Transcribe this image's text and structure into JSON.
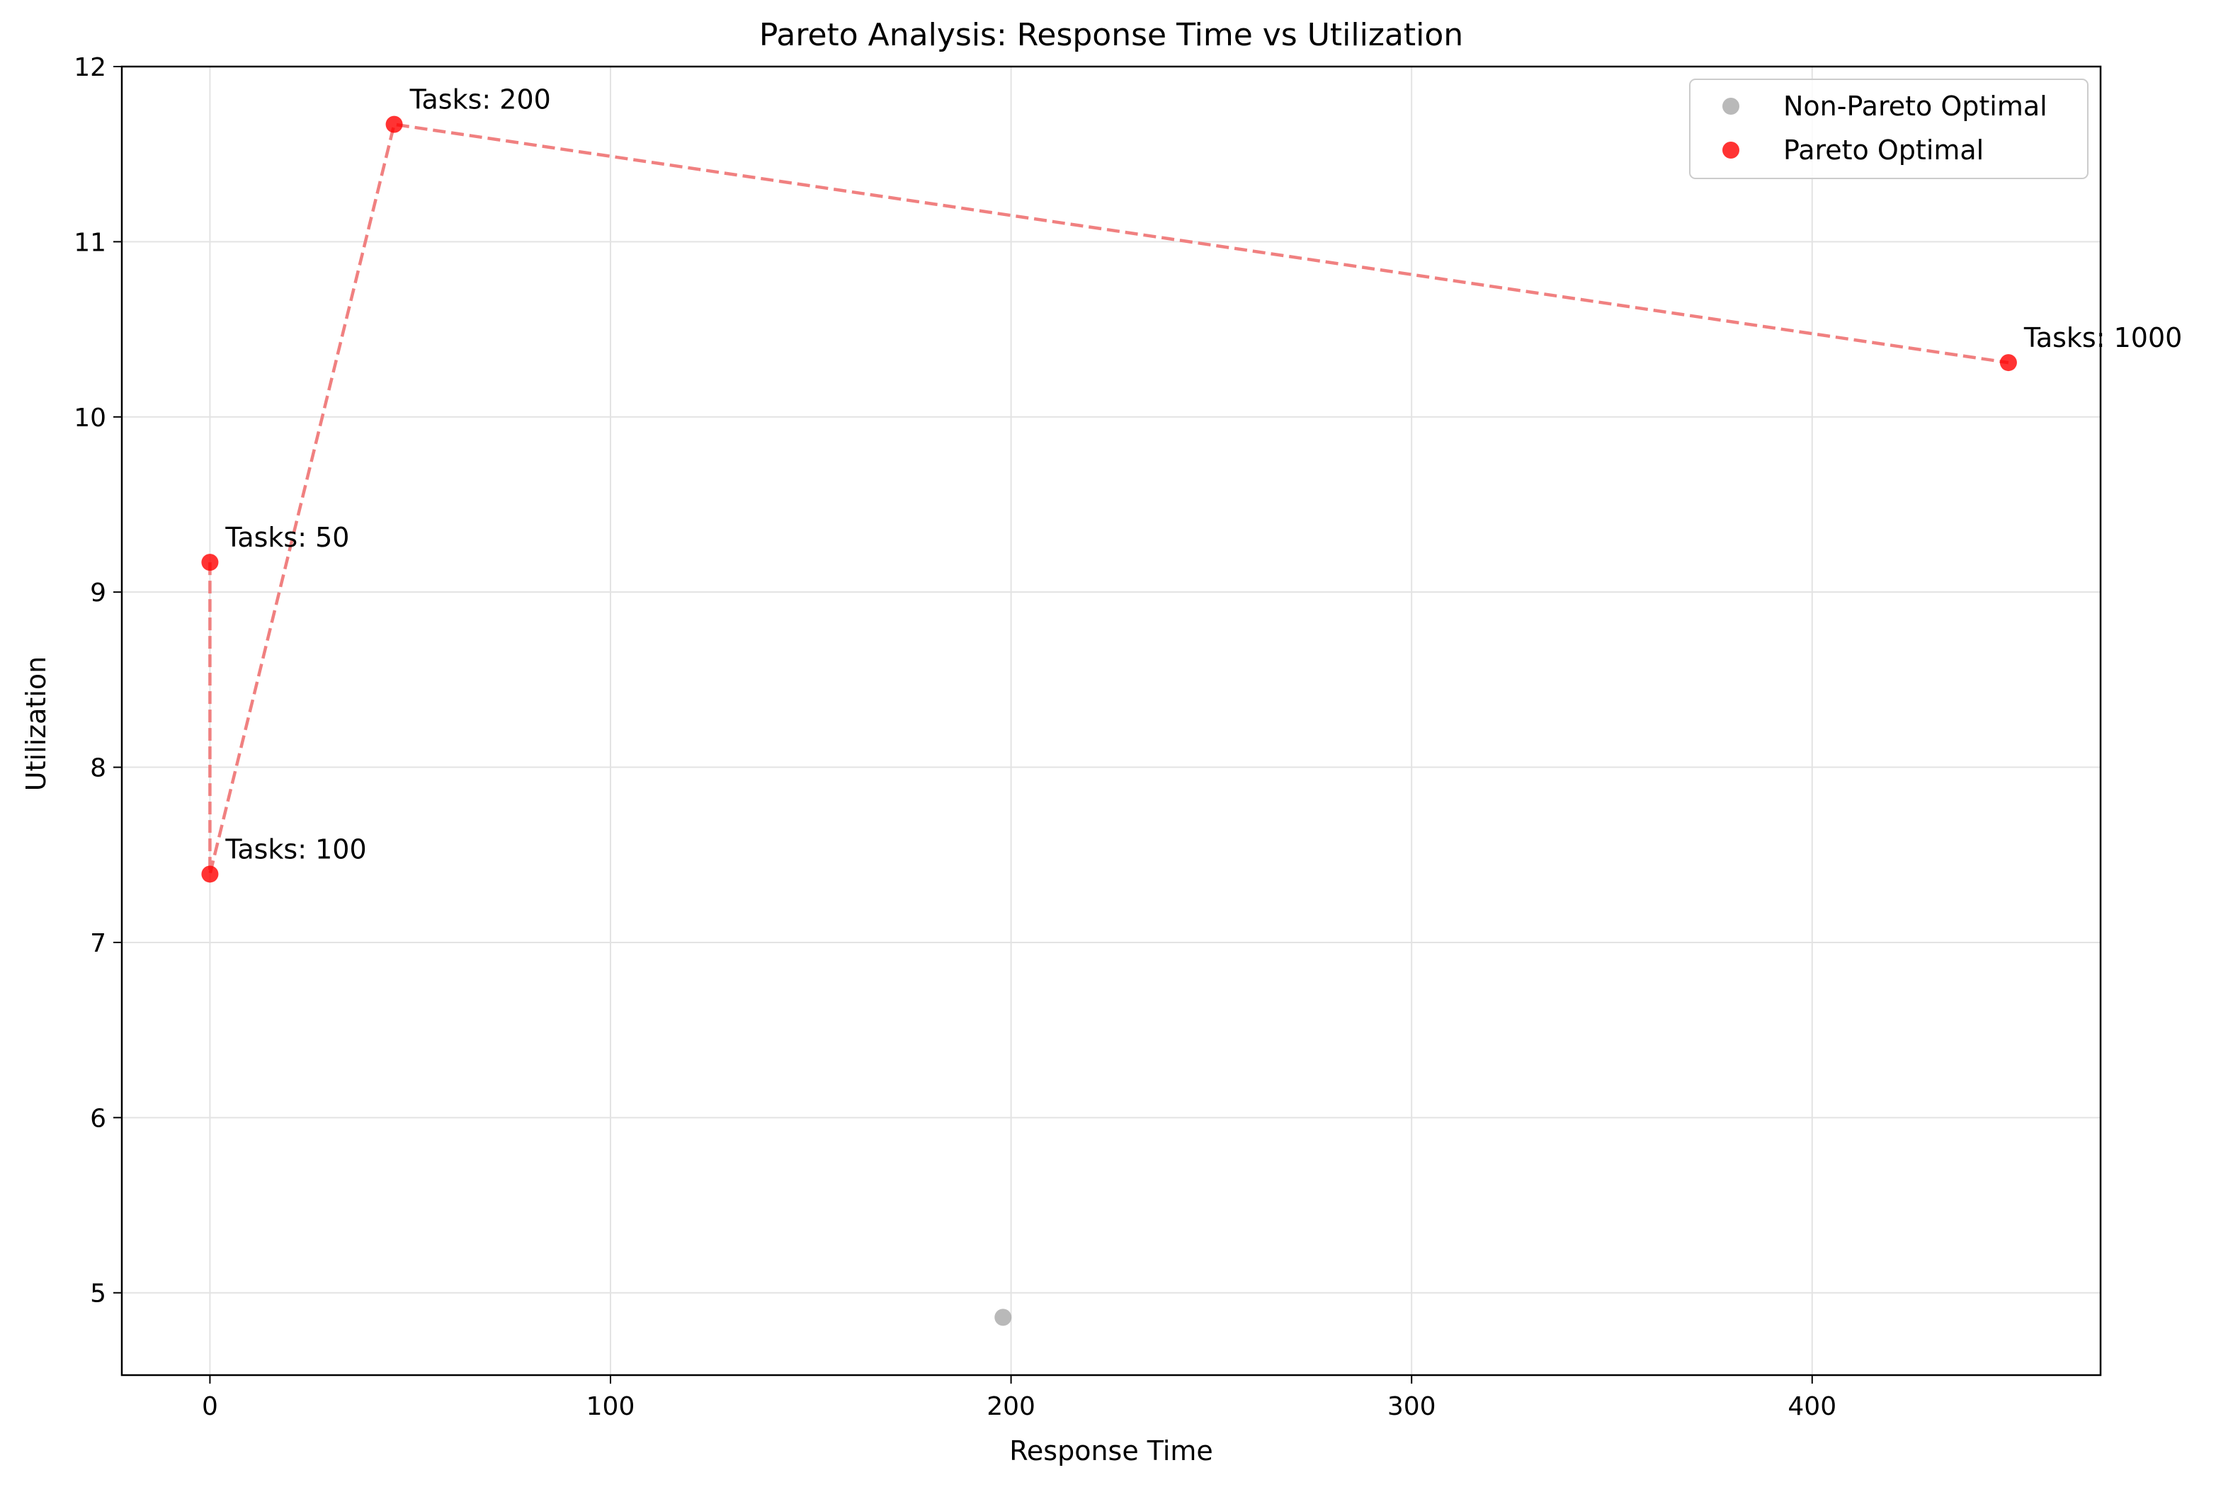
{
  "chart_data": {
    "type": "scatter",
    "title": "Pareto Analysis: Response Time vs Utilization",
    "xlabel": "Response Time",
    "ylabel": "Utilization",
    "xlim": [
      -22,
      472
    ],
    "ylim": [
      4.53,
      12.0
    ],
    "xticks": [
      0,
      100,
      200,
      300,
      400
    ],
    "yticks": [
      5,
      6,
      7,
      8,
      9,
      10,
      11,
      12
    ],
    "grid": true,
    "legend_position": "top-right",
    "series": [
      {
        "name": "Non-Pareto Optimal",
        "color": "#a8a8a8",
        "points": [
          {
            "x": 198,
            "y": 4.86
          }
        ]
      },
      {
        "name": "Pareto Optimal",
        "color": "#ff0000",
        "points": [
          {
            "x": 0,
            "y": 9.17,
            "label": "Tasks: 50"
          },
          {
            "x": 0,
            "y": 7.39,
            "label": "Tasks: 100"
          },
          {
            "x": 46,
            "y": 11.67,
            "label": "Tasks: 200"
          },
          {
            "x": 449,
            "y": 10.31,
            "label": "Tasks: 1000"
          }
        ]
      }
    ],
    "frontier_line": {
      "color": "#f08080",
      "style": "dashed",
      "order": [
        {
          "x": 0,
          "y": 9.17
        },
        {
          "x": 0,
          "y": 7.39
        },
        {
          "x": 46,
          "y": 11.67
        },
        {
          "x": 449,
          "y": 10.31
        }
      ]
    }
  }
}
